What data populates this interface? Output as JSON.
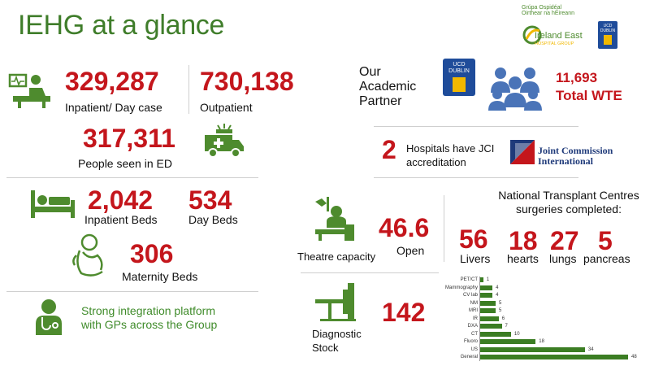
{
  "title": "IEHG at a glance",
  "logo": {
    "irish_line1": "Grúpa Ospidéal",
    "irish_line2": "Oirthear na hÉireann",
    "name_main": "Ireland East",
    "name_sub": "HOSPITAL GROUP",
    "ucd_text": "UCD DUBLIN"
  },
  "stats": {
    "inpatient": {
      "value": "329,287",
      "label": "Inpatient/ Day case"
    },
    "outpatient": {
      "value": "730,138",
      "label": "Outpatient"
    },
    "ed": {
      "value": "317,311",
      "label": "People seen in ED"
    },
    "inpatient_beds": {
      "value": "2,042",
      "label": "Inpatient Beds"
    },
    "day_beds": {
      "value": "534",
      "label": "Day Beds"
    },
    "maternity_beds": {
      "value": "306",
      "label": "Maternity Beds"
    },
    "integration": "Strong integration platform with GPs across the Group",
    "academic_partner": "Our Academic Partner",
    "wte": {
      "value": "11,693",
      "label": "Total WTE"
    },
    "jci": {
      "value": "2",
      "label": "Hospitals have JCI accreditation"
    },
    "jci_logo": {
      "line1": "Joint Commission",
      "line2": "International"
    },
    "theatre": {
      "value": "46.6",
      "label": "Open",
      "caption": "Theatre capacity"
    },
    "transplant": {
      "heading": "National Transplant Centres surgeries completed:",
      "items": [
        {
          "value": "56",
          "label": "Livers"
        },
        {
          "value": "18",
          "label": "hearts"
        },
        {
          "value": "27",
          "label": "lungs"
        },
        {
          "value": "5",
          "label": "pancreas"
        }
      ]
    },
    "diagnostic": {
      "value": "142",
      "caption": "Diagnostic Stock"
    }
  },
  "icons": [
    "patient-monitor-icon",
    "ambulance-icon",
    "bed-icon",
    "baby-icon",
    "gp-doctor-icon",
    "people-group-icon",
    "surgeon-icon",
    "scanner-icon"
  ],
  "colors": {
    "accent_red": "#c4161c",
    "brand_green": "#4e8b2e",
    "title_green": "#3f7d2a",
    "jci_blue": "#1f3a7a"
  },
  "chart_data": {
    "type": "bar",
    "orientation": "horizontal",
    "categories": [
      "PET/CT",
      "Mammography",
      "CV lab",
      "NM",
      "MRI",
      "IR",
      "DXA",
      "CT",
      "Fluoro",
      "US",
      "General"
    ],
    "values": [
      1,
      4,
      4,
      5,
      5,
      6,
      7,
      10,
      18,
      34,
      48
    ]
  }
}
